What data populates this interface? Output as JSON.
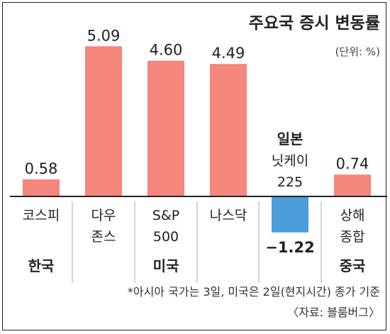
{
  "chart_data": {
    "type": "bar",
    "title": "주요국 증시 변동률",
    "unit": "(단위: %)",
    "categories": [
      {
        "lines": [
          "코스피"
        ],
        "value": 0.58,
        "value_label": "0.58",
        "group": "한국"
      },
      {
        "lines": [
          "다우",
          "존스"
        ],
        "value": 5.09,
        "value_label": "5.09",
        "group": "미국"
      },
      {
        "lines": [
          "S&P",
          "500"
        ],
        "value": 4.6,
        "value_label": "4.60",
        "group": "미국"
      },
      {
        "lines": [
          "나스닥"
        ],
        "value": 4.49,
        "value_label": "4.49",
        "group": "미국"
      },
      {
        "lines": [
          "일본",
          "닛케이",
          "225"
        ],
        "value": -1.22,
        "value_label": "−1.22",
        "group": "일본"
      },
      {
        "lines": [
          "상해",
          "종합"
        ],
        "value": 0.74,
        "value_label": "0.74",
        "group": "중국"
      }
    ],
    "groups": [
      {
        "label": "한국"
      },
      {
        "label": "미국"
      },
      {
        "label": "중국"
      }
    ],
    "colors": {
      "positive": "#f4867b",
      "negative": "#4b9ddc",
      "axis": "#222222",
      "divider": "#aaaaaa"
    },
    "notes": [
      "*아시아 국가는 3일, 미국은 2일(현지시간) 종가 기준",
      "〈자료: 블룸버그〉"
    ]
  }
}
